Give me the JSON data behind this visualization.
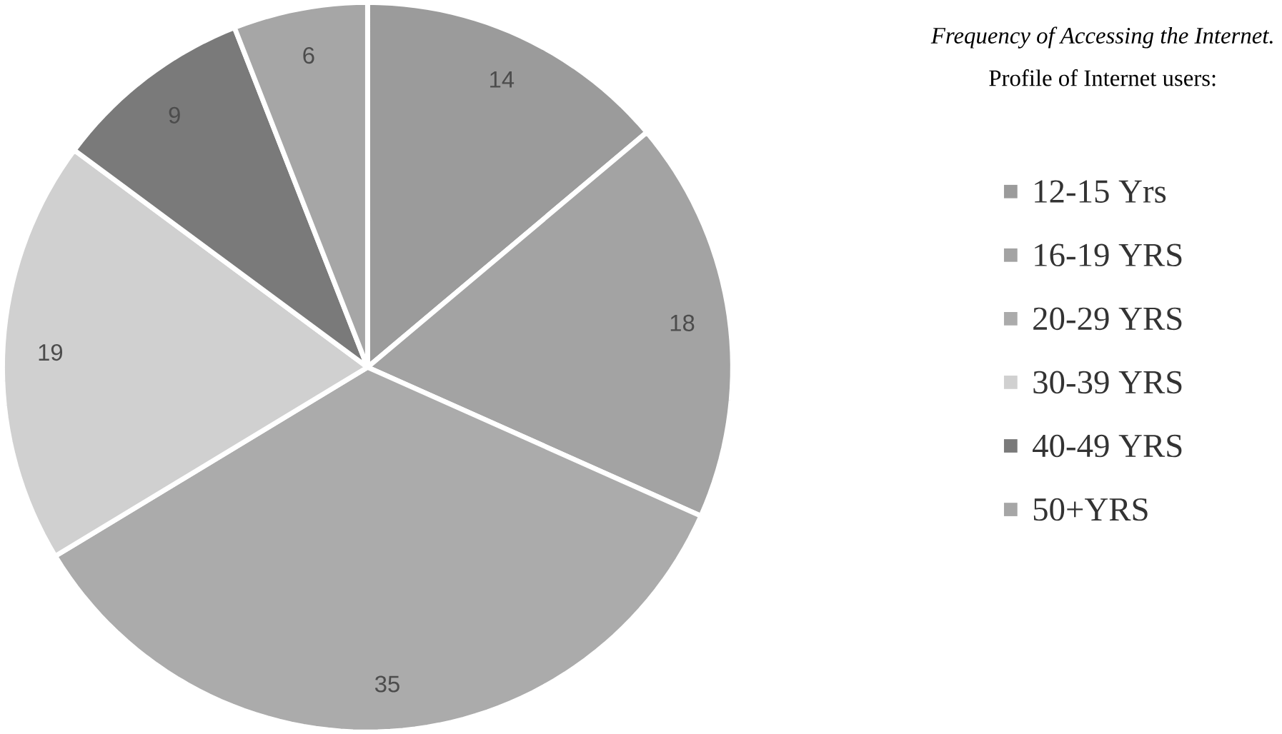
{
  "chart_data": {
    "type": "pie",
    "title": "Frequency of Accessing the Internet.",
    "subtitle": "Profile of Internet users:",
    "categories": [
      "12-15 Yrs",
      "16-19 YRS",
      "20-29 YRS",
      "30-39 YRS",
      "40-49 YRS",
      "50+YRS"
    ],
    "values": [
      14,
      18,
      35,
      19,
      9,
      6
    ],
    "colors": [
      "#9b9b9b",
      "#a3a3a3",
      "#ababab",
      "#d0d0d0",
      "#7a7a7a",
      "#a6a6a6"
    ],
    "data_labels": true,
    "legend": "right"
  }
}
